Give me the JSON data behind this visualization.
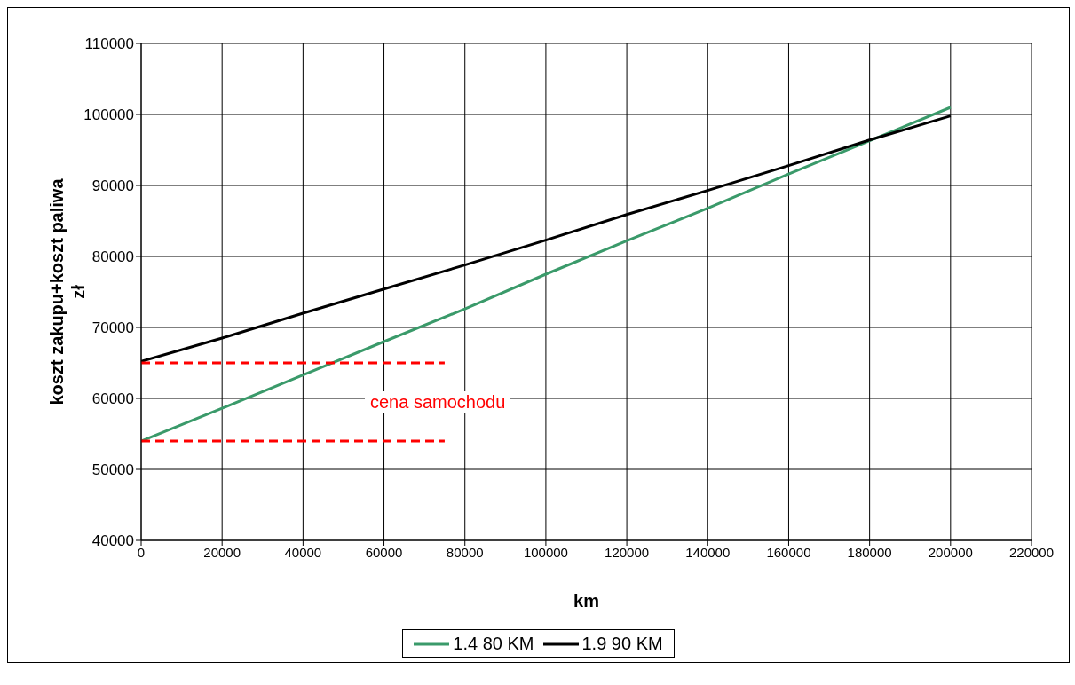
{
  "chart_data": {
    "type": "line",
    "xlabel": "km",
    "ylabel": "koszt zakupu+koszt paliwa\nzł",
    "xlim": [
      0,
      220000
    ],
    "xticks": [
      0,
      20000,
      40000,
      60000,
      80000,
      100000,
      120000,
      140000,
      160000,
      180000,
      200000,
      220000
    ],
    "ylim": [
      40000,
      110000
    ],
    "yticks": [
      40000,
      50000,
      60000,
      70000,
      80000,
      90000,
      100000,
      110000
    ],
    "grid": true,
    "legend": "bottom",
    "marker": "none",
    "series": [
      {
        "name": "1.4 80 KM",
        "color": "#3a9a6a",
        "line_style": "solid",
        "x": [
          0,
          20000,
          40000,
          60000,
          80000,
          100000,
          120000,
          140000,
          160000,
          180000,
          200000
        ],
        "values": [
          54000,
          58600,
          63300,
          68000,
          72600,
          77500,
          82200,
          86800,
          91600,
          96300,
          101000
        ]
      },
      {
        "name": "1.9 90 KM",
        "color": "#000000",
        "line_style": "solid",
        "x": [
          0,
          20000,
          40000,
          60000,
          80000,
          100000,
          120000,
          140000,
          160000,
          180000,
          200000
        ],
        "values": [
          65200,
          68500,
          72000,
          75400,
          78800,
          82300,
          85900,
          89300,
          92800,
          96400,
          99800
        ]
      },
      {
        "color": "#ff0000",
        "line_style": "dashed",
        "x": [
          0,
          75000
        ],
        "values": [
          65000,
          65000
        ]
      },
      {
        "color": "#ff0000",
        "line_style": "dashed",
        "x": [
          0,
          75000
        ],
        "values": [
          54000,
          54000
        ]
      }
    ],
    "annotations": [
      "cena samochodu"
    ]
  }
}
